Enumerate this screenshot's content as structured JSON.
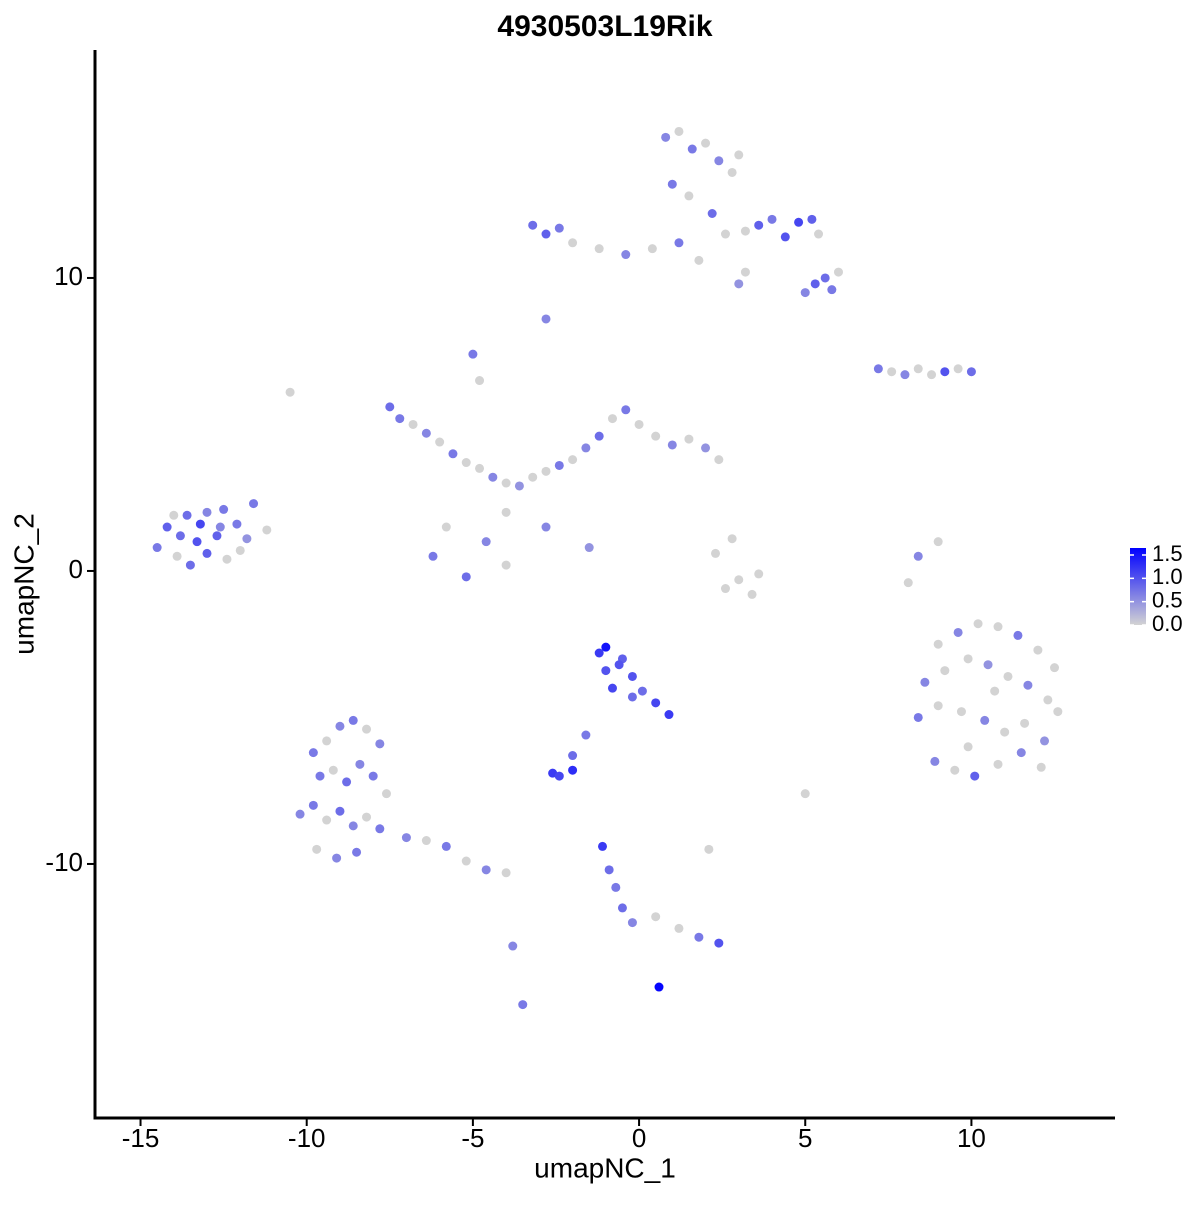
{
  "chart_data": {
    "type": "scatter",
    "title": "4930503L19Rik",
    "x_label": "umapNC_1",
    "y_label": "umapNC_2",
    "xlim": [
      -16.37,
      14.32
    ],
    "ylim": [
      -18.67,
      17.78
    ],
    "xticks": [
      -15,
      -10,
      -5,
      0,
      5,
      10
    ],
    "yticks": [
      -10,
      0,
      10
    ],
    "color_low": "#d3d3d3",
    "color_high": "#0000ff",
    "colorbar_lim": [
      0,
      1.65
    ],
    "colorbar_ticks": [
      {
        "value": 0,
        "label": "0.0"
      },
      0.5,
      {
        "value": 1,
        "label": "1.0"
      },
      1.5
    ],
    "x": [
      -14.5,
      -14.2,
      -13.9,
      -13.6,
      -13.3,
      -13.0,
      -12.7,
      -12.4,
      -12.1,
      -11.8,
      -14.0,
      -13.5,
      -13.0,
      -12.5,
      -12.0,
      -13.8,
      -13.2,
      -12.6,
      -11.6,
      -11.2,
      -7.5,
      -7.2,
      -6.8,
      -6.4,
      -6.0,
      -5.6,
      -5.2,
      -4.8,
      -4.4,
      -4.0,
      -3.6,
      -3.2,
      -2.8,
      -2.4,
      -2.0,
      -1.6,
      -1.2,
      -0.8,
      -0.4,
      0,
      0.5,
      1,
      1.5,
      2.0,
      2.4,
      -5,
      -4.8,
      -4.0,
      -2.8,
      -1.5,
      -6.2,
      -5.8,
      -5.2,
      -4.6,
      -4.0,
      0.8,
      1.2,
      1.6,
      2.0,
      2.4,
      2.8,
      3.0,
      1.0,
      1.5,
      2.2,
      2.6,
      3.2,
      3.6,
      4.0,
      4.4,
      4.8,
      5.2,
      5.4,
      5.6,
      5.0,
      5.3,
      5.8,
      6.0,
      -3.2,
      -2.8,
      -2.4,
      -2.0,
      -1.2,
      -0.4,
      0.4,
      1.2,
      1.8,
      3.2,
      3.0,
      -2.8,
      7.2,
      7.6,
      8.0,
      8.4,
      8.8,
      9.2,
      9.6,
      10.0,
      -1.2,
      -1.0,
      -0.8,
      -0.5,
      -0.2,
      0.1,
      0.5,
      0.9,
      -1.0,
      -0.6,
      -0.2,
      -1.6,
      -2.0,
      -2.6,
      -2.4,
      -2.0,
      -1.1,
      -0.9,
      -0.7,
      -0.5,
      -0.2,
      0.5,
      1.2,
      1.8,
      2.4,
      0.6,
      2.6,
      3.0,
      3.4,
      3.6,
      2.3,
      2.8,
      2.1,
      5.0,
      8.4,
      8.1,
      9.0,
      -10.5,
      9.0,
      9.6,
      10.2,
      10.8,
      11.4,
      12.0,
      12.5,
      8.6,
      9.2,
      9.9,
      10.5,
      11.1,
      11.7,
      12.3,
      8.4,
      9.0,
      9.7,
      10.4,
      11.0,
      11.6,
      12.2,
      12.6,
      8.9,
      9.5,
      10.1,
      10.8,
      11.5,
      12.1,
      9.9,
      10.7,
      -9.8,
      -9.4,
      -9.0,
      -8.6,
      -8.2,
      -7.8,
      -9.6,
      -9.2,
      -8.8,
      -8.4,
      -8.0,
      -7.6,
      -10.2,
      -9.8,
      -9.4,
      -9.0,
      -8.6,
      -8.2,
      -7.8,
      -9.7,
      -9.1,
      -8.5,
      -7.0,
      -6.4,
      -5.8,
      -5.2,
      -4.6,
      -4.0,
      -3.8,
      -3.5
    ],
    "y": [
      0.8,
      1.5,
      0.5,
      1.9,
      1.0,
      2.0,
      1.2,
      0.4,
      1.6,
      1.1,
      1.9,
      0.2,
      0.6,
      2.1,
      0.7,
      1.2,
      1.6,
      1.5,
      2.3,
      1.4,
      5.6,
      5.2,
      5.0,
      4.7,
      4.4,
      4.0,
      3.7,
      3.5,
      3.2,
      3.0,
      2.9,
      3.2,
      3.4,
      3.6,
      3.8,
      4.2,
      4.6,
      5.2,
      5.5,
      5.0,
      4.6,
      4.3,
      4.5,
      4.2,
      3.8,
      7.4,
      6.5,
      2.0,
      1.5,
      0.8,
      0.5,
      1.5,
      -0.2,
      1.0,
      0.2,
      14.8,
      15.0,
      14.4,
      14.6,
      14.0,
      13.6,
      14.2,
      13.2,
      12.8,
      12.2,
      11.5,
      11.6,
      11.8,
      12.0,
      11.4,
      11.9,
      12.0,
      11.5,
      10.0,
      9.5,
      9.8,
      9.6,
      10.2,
      11.8,
      11.5,
      11.7,
      11.2,
      11.0,
      10.8,
      11.0,
      11.2,
      10.6,
      10.2,
      9.8,
      8.6,
      6.9,
      6.8,
      6.7,
      6.9,
      6.7,
      6.8,
      6.9,
      6.8,
      -2.8,
      -3.4,
      -4.0,
      -3.0,
      -3.6,
      -4.1,
      -4.5,
      -4.9,
      -2.6,
      -3.2,
      -4.3,
      -5.6,
      -6.3,
      -6.9,
      -7.0,
      -6.8,
      -9.4,
      -10.2,
      -10.8,
      -11.5,
      -12.0,
      -11.8,
      -12.2,
      -12.5,
      -12.7,
      -14.2,
      -0.6,
      -0.3,
      -0.8,
      -0.1,
      0.6,
      1.1,
      -9.5,
      -7.6,
      0.5,
      -0.4,
      1.0,
      6.1,
      -2.5,
      -2.1,
      -1.8,
      -1.9,
      -2.2,
      -2.7,
      -3.3,
      -3.8,
      -3.4,
      -3.0,
      -3.2,
      -3.6,
      -3.9,
      -4.4,
      -5.0,
      -4.6,
      -4.8,
      -5.1,
      -5.5,
      -5.2,
      -5.8,
      -4.8,
      -6.5,
      -6.8,
      -7.0,
      -6.6,
      -6.2,
      -6.7,
      -6.0,
      -4.1,
      -6.2,
      -5.8,
      -5.3,
      -5.1,
      -5.4,
      -5.9,
      -7.0,
      -6.8,
      -7.2,
      -6.6,
      -7.0,
      -7.6,
      -8.3,
      -8.0,
      -8.5,
      -8.2,
      -8.7,
      -8.4,
      -8.8,
      -9.5,
      -9.8,
      -9.6,
      -9.1,
      -9.2,
      -9.4,
      -9.9,
      -10.2,
      -10.3,
      -12.8,
      -14.8
    ],
    "expression": [
      0.7,
      0.9,
      0,
      0.8,
      1.0,
      0.6,
      0.9,
      0,
      0.7,
      0.5,
      0,
      0.8,
      0.9,
      0.7,
      0,
      0.8,
      1.1,
      0.6,
      0.7,
      0,
      0.8,
      0.7,
      0,
      0.6,
      0,
      0.7,
      0,
      0,
      0.6,
      0,
      0.5,
      0,
      0,
      0.7,
      0,
      0.6,
      0.8,
      0,
      0.7,
      0,
      0,
      0.6,
      0,
      0.5,
      0,
      0.7,
      0,
      0,
      0.6,
      0.5,
      0.7,
      0,
      0.8,
      0.6,
      0,
      0.6,
      0,
      0.7,
      0,
      0.6,
      0,
      0,
      0.7,
      0,
      0.8,
      0,
      0,
      0.9,
      0.7,
      1.0,
      1.1,
      0.9,
      0,
      0.8,
      0.6,
      0.9,
      0.7,
      0,
      0.8,
      0.9,
      0.7,
      0,
      0,
      0.6,
      0,
      0.7,
      0,
      0,
      0.5,
      0.6,
      0.7,
      0,
      0.6,
      0,
      0,
      1.0,
      0,
      0.8,
      1.2,
      1.0,
      1.1,
      0.9,
      1.0,
      0.8,
      1.1,
      1.2,
      1.5,
      1.0,
      0.8,
      0.7,
      0.8,
      1.2,
      1.1,
      1.3,
      1.2,
      0.8,
      0.7,
      0.8,
      0.6,
      0,
      0,
      0.7,
      1.0,
      1.6,
      0,
      0,
      0,
      0,
      0,
      0,
      0,
      0,
      0.6,
      0,
      0,
      0,
      0,
      0.6,
      0,
      0,
      0.7,
      0,
      0,
      0.6,
      0,
      0,
      0.5,
      0,
      0.6,
      0,
      0.7,
      0,
      0,
      0.6,
      0,
      0,
      0.5,
      0,
      0.6,
      0,
      0.9,
      0,
      0.6,
      0,
      0,
      0,
      0.7,
      0,
      0.6,
      0.7,
      0,
      0.6,
      0.7,
      0,
      0.8,
      0.6,
      0.7,
      0,
      0.6,
      0.7,
      0,
      0.8,
      0.6,
      0,
      0.7,
      0,
      0.6,
      0.7,
      0.6,
      0,
      0.7,
      0,
      0.6,
      0,
      0.6,
      0.7
    ]
  }
}
